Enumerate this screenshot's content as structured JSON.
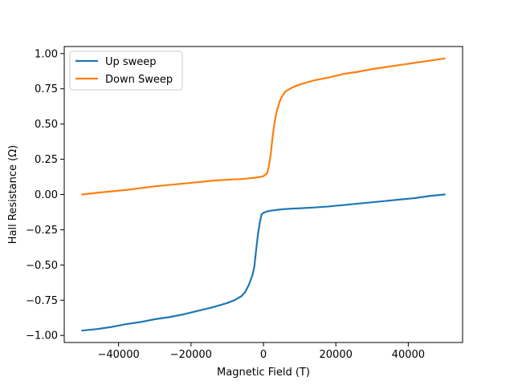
{
  "chart_data": {
    "type": "line",
    "title": "",
    "xlabel": "Magnetic Field (T)",
    "ylabel": "Hall Resistance (Ω)",
    "xlim": [
      -55000,
      55000
    ],
    "ylim": [
      -1.05,
      1.05
    ],
    "xticks": [
      -40000,
      -20000,
      0,
      20000,
      40000
    ],
    "xtick_labels": [
      "−40000",
      "−20000",
      "0",
      "20000",
      "40000"
    ],
    "yticks": [
      -1.0,
      -0.75,
      -0.5,
      -0.25,
      0.0,
      0.25,
      0.5,
      0.75,
      1.0
    ],
    "ytick_labels": [
      "−1.00",
      "−0.75",
      "−0.50",
      "−0.25",
      "0.00",
      "0.25",
      "0.50",
      "0.75",
      "1.00"
    ],
    "grid": false,
    "legend_position": "top-left",
    "series": [
      {
        "name": "Up sweep",
        "color": "#1f77b4",
        "x": [
          -50000,
          -46000,
          -42000,
          -38000,
          -34000,
          -30000,
          -26000,
          -22000,
          -18000,
          -14000,
          -10000,
          -8000,
          -6000,
          -5000,
          -4000,
          -3000,
          -2500,
          -2000,
          -1500,
          -1000,
          -500,
          0,
          1000,
          2000,
          4000,
          6000,
          8000,
          10000,
          14000,
          18000,
          22000,
          26000,
          30000,
          34000,
          38000,
          42000,
          46000,
          50000
        ],
        "y": [
          -0.965,
          -0.955,
          -0.94,
          -0.92,
          -0.905,
          -0.885,
          -0.87,
          -0.85,
          -0.825,
          -0.8,
          -0.77,
          -0.75,
          -0.72,
          -0.69,
          -0.64,
          -0.57,
          -0.51,
          -0.39,
          -0.28,
          -0.2,
          -0.14,
          -0.13,
          -0.12,
          -0.115,
          -0.108,
          -0.103,
          -0.1,
          -0.098,
          -0.092,
          -0.085,
          -0.075,
          -0.065,
          -0.055,
          -0.045,
          -0.035,
          -0.025,
          -0.01,
          0.0
        ]
      },
      {
        "name": "Down Sweep",
        "color": "#ff7f0e",
        "x": [
          -50000,
          -46000,
          -42000,
          -38000,
          -34000,
          -30000,
          -26000,
          -22000,
          -18000,
          -14000,
          -10000,
          -6000,
          -4000,
          -2000,
          0,
          1000,
          1500,
          2000,
          2500,
          3000,
          3500,
          4000,
          4500,
          5000,
          6000,
          8000,
          10000,
          14000,
          18000,
          22000,
          26000,
          30000,
          34000,
          38000,
          42000,
          46000,
          50000
        ],
        "y": [
          0.0,
          0.012,
          0.022,
          0.032,
          0.045,
          0.058,
          0.068,
          0.078,
          0.088,
          0.098,
          0.105,
          0.11,
          0.115,
          0.12,
          0.13,
          0.15,
          0.2,
          0.28,
          0.4,
          0.5,
          0.57,
          0.62,
          0.66,
          0.69,
          0.73,
          0.76,
          0.78,
          0.81,
          0.83,
          0.855,
          0.87,
          0.89,
          0.905,
          0.92,
          0.935,
          0.95,
          0.965
        ]
      }
    ]
  }
}
